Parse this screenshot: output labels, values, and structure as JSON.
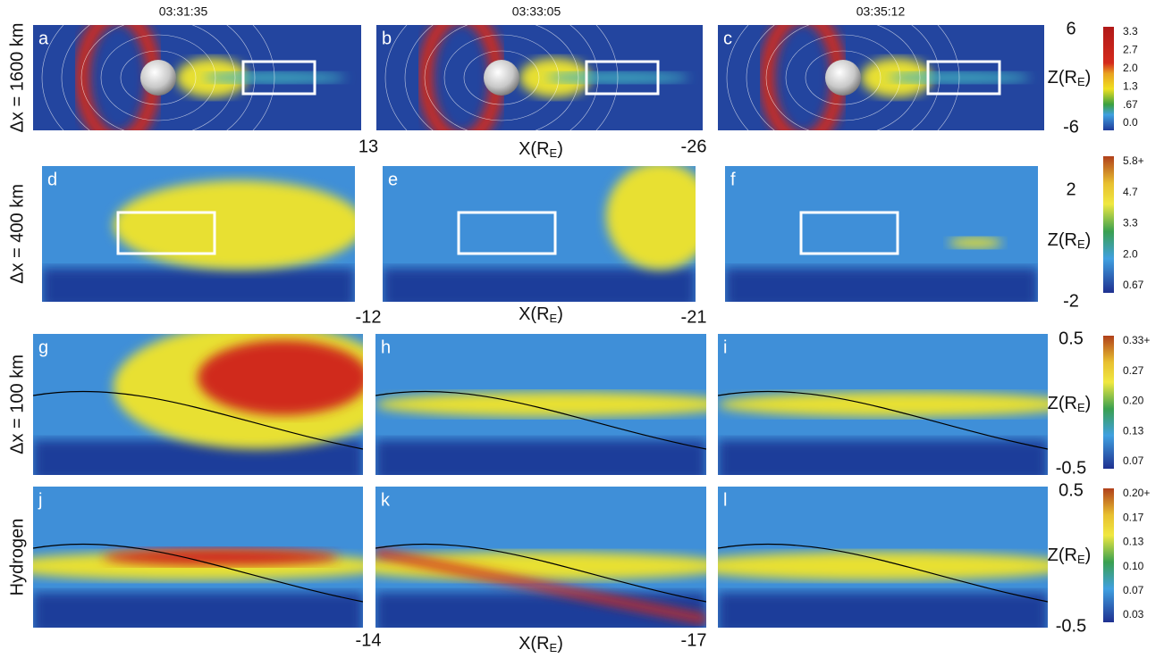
{
  "times": [
    "03:31:35",
    "03:33:05",
    "03:35:12"
  ],
  "x_label": {
    "main": "X(R",
    "sub": "E",
    "close": ")"
  },
  "z_label": {
    "main": "Z(R",
    "sub": "E",
    "close": ")"
  },
  "rows": [
    {
      "label": "Δx = 1600 km",
      "panels": [
        "a",
        "b",
        "c"
      ],
      "z_top": "6",
      "z_bottom": "-6",
      "x_left": "13",
      "x_right": "-26",
      "colorbar": [
        "3.3",
        "2.7",
        "2.0",
        "1.3",
        ".67",
        "0.0"
      ]
    },
    {
      "label": "Δx = 400 km",
      "panels": [
        "d",
        "e",
        "f"
      ],
      "z_top": "2",
      "z_bottom": "-2",
      "x_left": "-12",
      "x_right": "-21",
      "colorbar": [
        "5.8+",
        "4.7",
        "3.3",
        "2.0",
        "0.67"
      ]
    },
    {
      "label": "Δx = 100 km",
      "panels": [
        "g",
        "h",
        "i"
      ],
      "z_top": "0.5",
      "z_bottom": "-0.5",
      "colorbar": [
        "0.33+",
        "0.27",
        "0.20",
        "0.13",
        "0.07"
      ]
    },
    {
      "label": "Hydrogen",
      "panels": [
        "j",
        "k",
        "l"
      ],
      "z_top": "0.5",
      "z_bottom": "-0.5",
      "x_left": "-14",
      "x_right": "-17",
      "colorbar": [
        "0.20+",
        "0.17",
        "0.13",
        "0.10",
        "0.07",
        "0.03"
      ]
    }
  ]
}
